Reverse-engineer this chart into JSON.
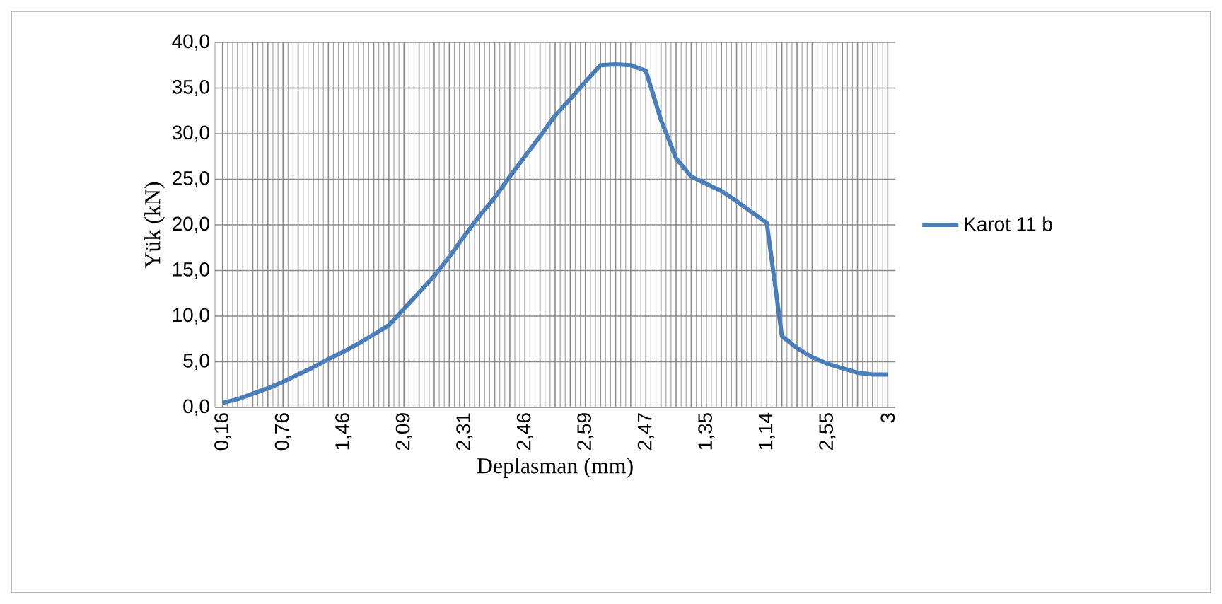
{
  "chart_data": {
    "type": "line",
    "xlabel": "Deplasman (mm)",
    "ylabel": "Yük (kN)",
    "categories": [
      "0,16",
      null,
      null,
      null,
      "0,76",
      null,
      null,
      null,
      "1,46",
      null,
      null,
      null,
      "2,09",
      null,
      null,
      null,
      "2,31",
      null,
      null,
      null,
      "2,46",
      null,
      null,
      null,
      "2,59",
      null,
      null,
      null,
      "2,47",
      null,
      null,
      null,
      "1,35",
      null,
      null,
      null,
      "1,14",
      null,
      null,
      null,
      "2,55",
      null,
      null,
      null,
      "3"
    ],
    "series": [
      {
        "name": "Karot 11 b",
        "color": "#4a7ebb",
        "values": [
          0.5,
          0.9,
          1.5,
          2.1,
          2.8,
          3.6,
          4.4,
          5.3,
          6.1,
          7.0,
          8.0,
          9.0,
          10.8,
          12.6,
          14.4,
          16.5,
          18.8,
          21.0,
          23.0,
          25.3,
          27.5,
          29.7,
          32.0,
          33.8,
          35.7,
          37.5,
          37.6,
          37.5,
          36.9,
          31.5,
          27.3,
          25.3,
          24.5,
          23.7,
          22.6,
          21.4,
          20.2,
          7.8,
          6.5,
          5.5,
          4.8,
          4.3,
          3.8,
          3.6,
          3.6
        ]
      }
    ],
    "ylim": [
      0,
      40
    ],
    "yticks": [
      {
        "value": 0,
        "label": "0,0"
      },
      {
        "value": 5,
        "label": "5,0"
      },
      {
        "value": 10,
        "label": "10,0"
      },
      {
        "value": 15,
        "label": "15,0"
      },
      {
        "value": 20,
        "label": "20,0"
      },
      {
        "value": 25,
        "label": "25,0"
      },
      {
        "value": 30,
        "label": "30,0"
      },
      {
        "value": 35,
        "label": "35,0"
      },
      {
        "value": 40,
        "label": "40,0"
      }
    ],
    "grid": true,
    "legend": "right",
    "marker": "none",
    "line_style": "solid"
  }
}
